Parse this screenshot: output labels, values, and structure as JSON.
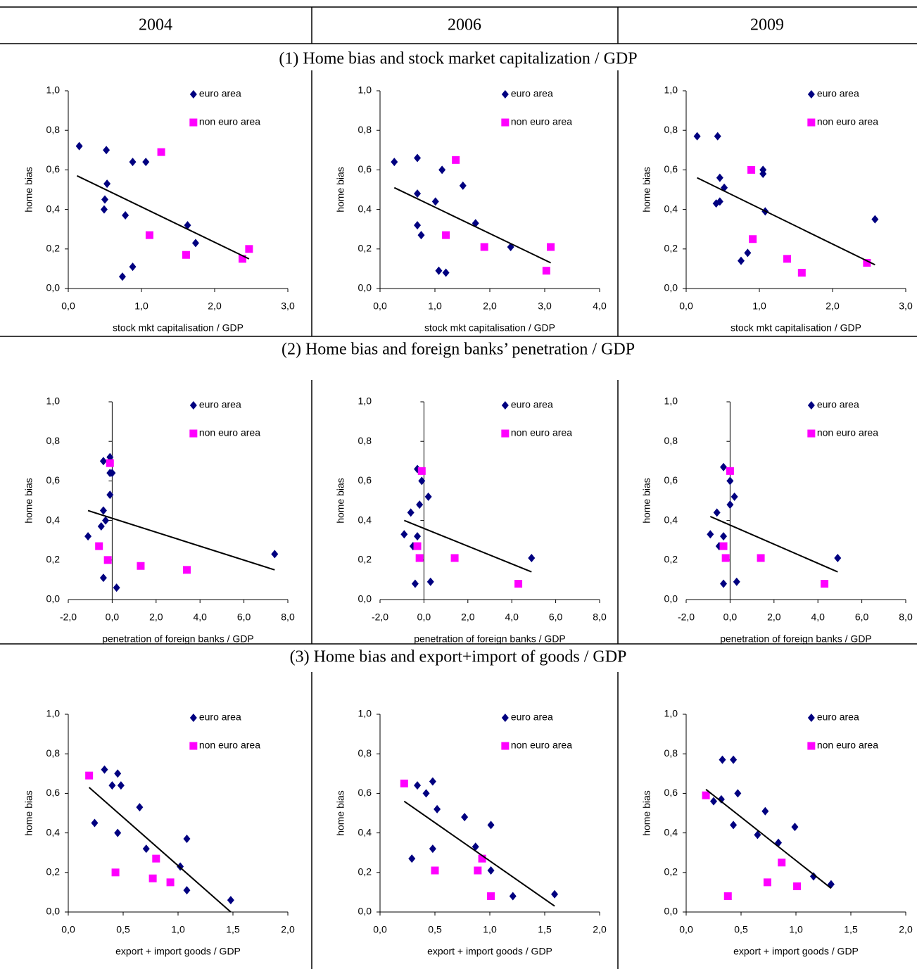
{
  "columns": [
    "2004",
    "2006",
    "2009"
  ],
  "sections": [
    "(1) Home bias and stock market capitalization / GDP",
    "(2) Home bias and foreign banks’ penetration / GDP",
    "(3) Home bias and export+import of goods / GDP"
  ],
  "chart_data": [
    {
      "type": "scatter",
      "xlabel": "stock mkt capitalisation / GDP",
      "ylabel": "home bias",
      "legend": "upper right",
      "xlim": [
        0,
        3
      ],
      "xticks": [
        {
          "value": 0,
          "label": "0,0"
        },
        {
          "value": 1,
          "label": "1,0"
        },
        {
          "value": 2,
          "label": "2,0"
        },
        {
          "value": 3,
          "label": "3,0"
        }
      ],
      "ylim": [
        0,
        1
      ],
      "yticks": [
        {
          "value": 0,
          "label": "0,0"
        },
        {
          "value": 0.2,
          "label": "0,2"
        },
        {
          "value": 0.4,
          "label": "0,4"
        },
        {
          "value": 0.6,
          "label": "0,6"
        },
        {
          "value": 0.8,
          "label": "0,8"
        },
        {
          "value": 1,
          "label": "1,0"
        }
      ],
      "series": [
        {
          "name": "euro area",
          "color": "#000080",
          "marker": "diamond",
          "x": [
            0.15,
            0.52,
            0.88,
            1.06,
            0.53,
            0.5,
            0.49,
            0.78,
            1.63,
            1.74,
            0.88,
            0.74
          ],
          "values": [
            0.72,
            0.7,
            0.64,
            0.64,
            0.53,
            0.45,
            0.4,
            0.37,
            0.32,
            0.23,
            0.11,
            0.06
          ]
        },
        {
          "name": "non euro area",
          "color": "#ff00ff",
          "marker": "square",
          "x": [
            1.27,
            1.11,
            1.61,
            2.47,
            2.38
          ],
          "values": [
            0.69,
            0.27,
            0.17,
            0.2,
            0.15
          ]
        }
      ],
      "trendline": {
        "x": [
          0.12,
          2.47
        ],
        "values": [
          0.57,
          0.15
        ]
      }
    },
    {
      "type": "scatter",
      "xlabel": "stock mkt capitalisation / GDP",
      "ylabel": "home bias",
      "legend": "upper right",
      "xlim": [
        0,
        4
      ],
      "xticks": [
        {
          "value": 0,
          "label": "0,0"
        },
        {
          "value": 1,
          "label": "1,0"
        },
        {
          "value": 2,
          "label": "2,0"
        },
        {
          "value": 3,
          "label": "3,0"
        },
        {
          "value": 4,
          "label": "4,0"
        }
      ],
      "ylim": [
        0,
        1
      ],
      "yticks": [
        {
          "value": 0,
          "label": "0,0"
        },
        {
          "value": 0.2,
          "label": "0,2"
        },
        {
          "value": 0.4,
          "label": "0,4"
        },
        {
          "value": 0.6,
          "label": "0,6"
        },
        {
          "value": 0.8,
          "label": "0,8"
        },
        {
          "value": 1,
          "label": "1,0"
        }
      ],
      "series": [
        {
          "name": "euro area",
          "color": "#000080",
          "marker": "diamond",
          "x": [
            0.26,
            0.68,
            1.13,
            0.68,
            1.51,
            1.01,
            0.68,
            0.75,
            1.74,
            2.38,
            1.07,
            1.2
          ],
          "values": [
            0.64,
            0.66,
            0.6,
            0.48,
            0.52,
            0.44,
            0.32,
            0.27,
            0.33,
            0.21,
            0.09,
            0.08
          ]
        },
        {
          "name": "non euro area",
          "color": "#ff00ff",
          "marker": "square",
          "x": [
            1.38,
            1.2,
            1.9,
            3.11,
            3.03
          ],
          "values": [
            0.65,
            0.27,
            0.21,
            0.21,
            0.09
          ]
        }
      ],
      "trendline": {
        "x": [
          0.26,
          3.11
        ],
        "values": [
          0.51,
          0.13
        ]
      }
    },
    {
      "type": "scatter",
      "xlabel": "stock mkt capitalisation / GDP",
      "ylabel": "home bias",
      "legend": "upper right",
      "xlim": [
        0,
        3
      ],
      "xticks": [
        {
          "value": 0,
          "label": "0,0"
        },
        {
          "value": 1,
          "label": "1,0"
        },
        {
          "value": 2,
          "label": "2,0"
        },
        {
          "value": 3,
          "label": "3,0"
        }
      ],
      "ylim": [
        0,
        1
      ],
      "yticks": [
        {
          "value": 0,
          "label": "0,0"
        },
        {
          "value": 0.2,
          "label": "0,2"
        },
        {
          "value": 0.4,
          "label": "0,4"
        },
        {
          "value": 0.6,
          "label": "0,6"
        },
        {
          "value": 0.8,
          "label": "0,8"
        },
        {
          "value": 1,
          "label": "1,0"
        }
      ],
      "series": [
        {
          "name": "euro area",
          "color": "#000080",
          "marker": "diamond",
          "x": [
            0.15,
            0.43,
            0.46,
            0.52,
            0.41,
            0.46,
            1.05,
            1.05,
            1.08,
            2.58,
            0.84,
            0.75
          ],
          "values": [
            0.77,
            0.77,
            0.56,
            0.51,
            0.43,
            0.44,
            0.6,
            0.58,
            0.39,
            0.35,
            0.18,
            0.14
          ]
        },
        {
          "name": "non euro area",
          "color": "#ff00ff",
          "marker": "square",
          "x": [
            0.89,
            0.91,
            1.38,
            1.58,
            2.47
          ],
          "values": [
            0.6,
            0.25,
            0.15,
            0.08,
            0.13
          ]
        }
      ],
      "trendline": {
        "x": [
          0.15,
          2.58
        ],
        "values": [
          0.56,
          0.12
        ]
      }
    },
    {
      "type": "scatter",
      "xlabel": "penetration of foreign banks / GDP",
      "ylabel": "home bias",
      "legend": "upper right",
      "yaxis_cross": 0,
      "xlim": [
        -2,
        8
      ],
      "xticks": [
        {
          "value": -2,
          "label": "-2,0"
        },
        {
          "value": 0,
          "label": "0,0"
        },
        {
          "value": 2,
          "label": "2,0"
        },
        {
          "value": 4,
          "label": "4,0"
        },
        {
          "value": 6,
          "label": "6,0"
        },
        {
          "value": 8,
          "label": "8,0"
        }
      ],
      "ylim": [
        0,
        1
      ],
      "yticks": [
        {
          "value": 0,
          "label": "0,0"
        },
        {
          "value": 0.2,
          "label": "0,2"
        },
        {
          "value": 0.4,
          "label": "0,4"
        },
        {
          "value": 0.6,
          "label": "0,6"
        },
        {
          "value": 0.8,
          "label": "0,8"
        },
        {
          "value": 1,
          "label": "1,0"
        }
      ],
      "series": [
        {
          "name": "euro area",
          "color": "#000080",
          "marker": "diamond",
          "x": [
            -0.1,
            -0.4,
            0,
            -0.1,
            -0.1,
            -0.4,
            -0.3,
            -0.5,
            -1.1,
            7.4,
            -0.4,
            0.2
          ],
          "values": [
            0.72,
            0.7,
            0.64,
            0.64,
            0.53,
            0.45,
            0.4,
            0.37,
            0.32,
            0.23,
            0.11,
            0.06
          ]
        },
        {
          "name": "non euro area",
          "color": "#ff00ff",
          "marker": "square",
          "x": [
            -0.1,
            -0.6,
            -0.2,
            1.3,
            3.4
          ],
          "values": [
            0.69,
            0.27,
            0.2,
            0.17,
            0.15
          ]
        }
      ],
      "trendline": {
        "x": [
          -1.1,
          7.4
        ],
        "values": [
          0.45,
          0.15
        ]
      }
    },
    {
      "type": "scatter",
      "xlabel": "penetration of foreign banks / GDP",
      "ylabel": "home bias",
      "legend": "upper right",
      "yaxis_cross": 0,
      "xlim": [
        -2,
        8
      ],
      "xticks": [
        {
          "value": -2,
          "label": "-2,0"
        },
        {
          "value": 0,
          "label": "0,0"
        },
        {
          "value": 2,
          "label": "2,0"
        },
        {
          "value": 4,
          "label": "4,0"
        },
        {
          "value": 6,
          "label": "6,0"
        },
        {
          "value": 8,
          "label": "8,0"
        }
      ],
      "ylim": [
        0,
        1
      ],
      "yticks": [
        {
          "value": 0,
          "label": "0,0"
        },
        {
          "value": 0.2,
          "label": "0,2"
        },
        {
          "value": 0.4,
          "label": "0,4"
        },
        {
          "value": 0.6,
          "label": "0,6"
        },
        {
          "value": 0.8,
          "label": "0,8"
        },
        {
          "value": 1,
          "label": "1,0"
        }
      ],
      "series": [
        {
          "name": "euro area",
          "color": "#000080",
          "marker": "diamond",
          "x": [
            -0.3,
            -0.1,
            0.2,
            -0.2,
            -0.6,
            -0.9,
            -0.3,
            -0.5,
            4.9,
            -0.4,
            0.3
          ],
          "values": [
            0.66,
            0.6,
            0.52,
            0.48,
            0.44,
            0.33,
            0.32,
            0.27,
            0.21,
            0.08,
            0.09
          ]
        },
        {
          "name": "non euro area",
          "color": "#ff00ff",
          "marker": "square",
          "x": [
            -0.1,
            -0.3,
            -0.2,
            1.4,
            4.3
          ],
          "values": [
            0.65,
            0.27,
            0.21,
            0.21,
            0.08
          ]
        }
      ],
      "trendline": {
        "x": [
          -0.9,
          4.9
        ],
        "values": [
          0.4,
          0.14
        ]
      }
    },
    {
      "type": "scatter",
      "xlabel": "penetration of foreign banks / GDP",
      "ylabel": "home bias",
      "legend": "upper right",
      "yaxis_cross": 0,
      "xlim": [
        -2,
        8
      ],
      "xticks": [
        {
          "value": -2,
          "label": "-2,0"
        },
        {
          "value": 0,
          "label": "0,0"
        },
        {
          "value": 2,
          "label": "2,0"
        },
        {
          "value": 4,
          "label": "4,0"
        },
        {
          "value": 6,
          "label": "6,0"
        },
        {
          "value": 8,
          "label": "8,0"
        }
      ],
      "ylim": [
        0,
        1
      ],
      "yticks": [
        {
          "value": 0,
          "label": "0,0"
        },
        {
          "value": 0.2,
          "label": "0,2"
        },
        {
          "value": 0.4,
          "label": "0,4"
        },
        {
          "value": 0.6,
          "label": "0,6"
        },
        {
          "value": 0.8,
          "label": "0,8"
        },
        {
          "value": 1,
          "label": "1,0"
        }
      ],
      "series": [
        {
          "name": "euro area",
          "color": "#000080",
          "marker": "diamond",
          "x": [
            -0.3,
            0,
            0.2,
            0,
            -0.6,
            -0.9,
            -0.3,
            -0.5,
            4.9,
            -0.3,
            0.3
          ],
          "values": [
            0.67,
            0.6,
            0.52,
            0.48,
            0.44,
            0.33,
            0.32,
            0.27,
            0.21,
            0.08,
            0.09
          ]
        },
        {
          "name": "non euro area",
          "color": "#ff00ff",
          "marker": "square",
          "x": [
            0,
            -0.3,
            -0.2,
            1.4,
            4.3
          ],
          "values": [
            0.65,
            0.27,
            0.21,
            0.21,
            0.08
          ]
        }
      ],
      "trendline": {
        "x": [
          -0.9,
          4.9
        ],
        "values": [
          0.42,
          0.14
        ]
      }
    },
    {
      "type": "scatter",
      "xlabel": "export + import goods / GDP",
      "ylabel": "home bias",
      "legend": "upper right",
      "xlim": [
        0,
        2
      ],
      "xticks": [
        {
          "value": 0,
          "label": "0,0"
        },
        {
          "value": 0.5,
          "label": "0,5"
        },
        {
          "value": 1,
          "label": "1,0"
        },
        {
          "value": 1.5,
          "label": "1,5"
        },
        {
          "value": 2,
          "label": "2,0"
        }
      ],
      "ylim": [
        0,
        1
      ],
      "yticks": [
        {
          "value": 0,
          "label": "0,0"
        },
        {
          "value": 0.2,
          "label": "0,2"
        },
        {
          "value": 0.4,
          "label": "0,4"
        },
        {
          "value": 0.6,
          "label": "0,6"
        },
        {
          "value": 0.8,
          "label": "0,8"
        },
        {
          "value": 1,
          "label": "1,0"
        }
      ],
      "series": [
        {
          "name": "euro area",
          "color": "#000080",
          "marker": "diamond",
          "x": [
            0.33,
            0.45,
            0.4,
            0.48,
            0.65,
            0.24,
            0.45,
            0.71,
            1.08,
            1.02,
            1.08,
            1.48
          ],
          "values": [
            0.72,
            0.7,
            0.64,
            0.64,
            0.53,
            0.45,
            0.4,
            0.32,
            0.37,
            0.23,
            0.11,
            0.06
          ]
        },
        {
          "name": "non euro area",
          "color": "#ff00ff",
          "marker": "square",
          "x": [
            0.19,
            0.43,
            0.8,
            0.77,
            0.93
          ],
          "values": [
            0.69,
            0.2,
            0.27,
            0.17,
            0.15
          ]
        }
      ],
      "trendline": {
        "x": [
          0.19,
          1.48
        ],
        "values": [
          0.63,
          0
        ]
      }
    },
    {
      "type": "scatter",
      "xlabel": "export + import goods / GDP",
      "ylabel": "home bias",
      "legend": "upper right",
      "xlim": [
        0,
        2
      ],
      "xticks": [
        {
          "value": 0,
          "label": "0,0"
        },
        {
          "value": 0.5,
          "label": "0,5"
        },
        {
          "value": 1,
          "label": "1,0"
        },
        {
          "value": 1.5,
          "label": "1,5"
        },
        {
          "value": 2,
          "label": "2,0"
        }
      ],
      "ylim": [
        0,
        1
      ],
      "yticks": [
        {
          "value": 0,
          "label": "0,0"
        },
        {
          "value": 0.2,
          "label": "0,2"
        },
        {
          "value": 0.4,
          "label": "0,4"
        },
        {
          "value": 0.6,
          "label": "0,6"
        },
        {
          "value": 0.8,
          "label": "0,8"
        },
        {
          "value": 1,
          "label": "1,0"
        }
      ],
      "series": [
        {
          "name": "euro area",
          "color": "#000080",
          "marker": "diamond",
          "x": [
            0.48,
            0.34,
            0.42,
            0.52,
            0.77,
            1.01,
            0.48,
            0.29,
            0.87,
            1.01,
            1.21,
            1.59
          ],
          "values": [
            0.66,
            0.64,
            0.6,
            0.52,
            0.48,
            0.44,
            0.32,
            0.27,
            0.33,
            0.21,
            0.08,
            0.09
          ]
        },
        {
          "name": "non euro area",
          "color": "#ff00ff",
          "marker": "square",
          "x": [
            0.22,
            0.5,
            0.93,
            0.89,
            1.01
          ],
          "values": [
            0.65,
            0.21,
            0.27,
            0.21,
            0.08
          ]
        }
      ],
      "trendline": {
        "x": [
          0.22,
          1.59
        ],
        "values": [
          0.56,
          0.03
        ]
      }
    },
    {
      "type": "scatter",
      "xlabel": "export + import goods / GDP",
      "ylabel": "home bias",
      "legend": "upper right",
      "xlim": [
        0,
        2
      ],
      "xticks": [
        {
          "value": 0,
          "label": "0,0"
        },
        {
          "value": 0.5,
          "label": "0,5"
        },
        {
          "value": 1,
          "label": "1,0"
        },
        {
          "value": 1.5,
          "label": "1,5"
        },
        {
          "value": 2,
          "label": "2,0"
        }
      ],
      "ylim": [
        0,
        1
      ],
      "yticks": [
        {
          "value": 0,
          "label": "0,0"
        },
        {
          "value": 0.2,
          "label": "0,2"
        },
        {
          "value": 0.4,
          "label": "0,4"
        },
        {
          "value": 0.6,
          "label": "0,6"
        },
        {
          "value": 0.8,
          "label": "0,8"
        },
        {
          "value": 1,
          "label": "1,0"
        }
      ],
      "series": [
        {
          "name": "euro area",
          "color": "#000080",
          "marker": "diamond",
          "x": [
            0.33,
            0.43,
            0.25,
            0.32,
            0.47,
            0.43,
            0.72,
            0.65,
            0.99,
            0.84,
            1.16,
            1.32
          ],
          "values": [
            0.77,
            0.77,
            0.56,
            0.57,
            0.6,
            0.44,
            0.51,
            0.39,
            0.43,
            0.35,
            0.18,
            0.14
          ]
        },
        {
          "name": "non euro area",
          "color": "#ff00ff",
          "marker": "square",
          "x": [
            0.18,
            0.38,
            0.74,
            0.87,
            1.01
          ],
          "values": [
            0.59,
            0.08,
            0.15,
            0.25,
            0.13
          ]
        }
      ],
      "trendline": {
        "x": [
          0.18,
          1.32
        ],
        "values": [
          0.62,
          0.12
        ]
      }
    }
  ]
}
